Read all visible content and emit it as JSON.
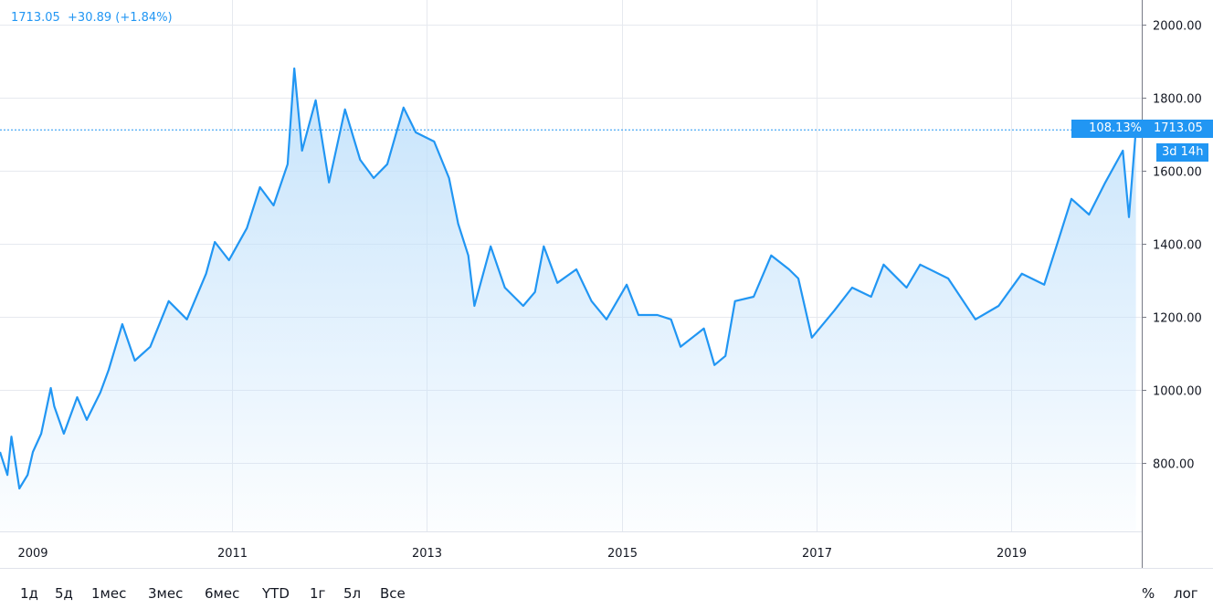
{
  "legend": {
    "price": "1713.05",
    "change": "+30.89",
    "change_pct": "(+1.84%)"
  },
  "price_tag": {
    "percent": "108.13%",
    "price": "1713.05",
    "countdown": "3d 14h"
  },
  "toolbar": {
    "ranges": [
      "1д",
      "5д",
      "1мес",
      "3мес",
      "6мес",
      "YTD",
      "1г",
      "5л",
      "Все"
    ],
    "percent": "%",
    "log": "лог"
  },
  "colors": {
    "line": "#2196f3",
    "fill_top": "#bfe0fb",
    "grid": "#e6e9ef",
    "text": "#131722"
  },
  "chart_data": {
    "type": "area",
    "x_ticks": [
      "2009",
      "2011",
      "2013",
      "2015",
      "2017",
      "2019"
    ],
    "y_ticks": [
      "800.00",
      "1000.00",
      "1200.00",
      "1400.00",
      "1600.00",
      "1800.00",
      "2000.00"
    ],
    "ylim": [
      612,
      2065
    ],
    "xlim": [
      "2008-08-15",
      "2020-04-20"
    ],
    "grid": true,
    "last_value_line": 1713.05,
    "points": [
      [
        "2008-08-15",
        830
      ],
      [
        "2008-09-10",
        767
      ],
      [
        "2008-09-25",
        872
      ],
      [
        "2008-10-25",
        730
      ],
      [
        "2008-11-25",
        767
      ],
      [
        "2008-12-15",
        830
      ],
      [
        "2009-01-15",
        880
      ],
      [
        "2009-02-20",
        1005
      ],
      [
        "2009-03-05",
        955
      ],
      [
        "2009-04-10",
        880
      ],
      [
        "2009-05-30",
        980
      ],
      [
        "2009-07-05",
        918
      ],
      [
        "2009-08-25",
        993
      ],
      [
        "2009-09-25",
        1055
      ],
      [
        "2009-11-15",
        1180
      ],
      [
        "2010-01-01",
        1080
      ],
      [
        "2010-02-28",
        1118
      ],
      [
        "2010-05-08",
        1243
      ],
      [
        "2010-07-15",
        1193
      ],
      [
        "2010-09-25",
        1318
      ],
      [
        "2010-10-28",
        1405
      ],
      [
        "2010-12-20",
        1355
      ],
      [
        "2011-02-25",
        1443
      ],
      [
        "2011-04-15",
        1555
      ],
      [
        "2011-06-05",
        1505
      ],
      [
        "2011-07-28",
        1618
      ],
      [
        "2011-08-22",
        1880
      ],
      [
        "2011-09-20",
        1655
      ],
      [
        "2011-11-10",
        1793
      ],
      [
        "2011-12-30",
        1568
      ],
      [
        "2012-02-28",
        1768
      ],
      [
        "2012-04-25",
        1630
      ],
      [
        "2012-06-15",
        1580
      ],
      [
        "2012-08-05",
        1618
      ],
      [
        "2012-10-05",
        1773
      ],
      [
        "2012-11-20",
        1705
      ],
      [
        "2013-01-28",
        1680
      ],
      [
        "2013-03-25",
        1580
      ],
      [
        "2013-04-28",
        1455
      ],
      [
        "2013-06-05",
        1368
      ],
      [
        "2013-06-28",
        1230
      ],
      [
        "2013-08-28",
        1393
      ],
      [
        "2013-10-20",
        1280
      ],
      [
        "2013-12-28",
        1230
      ],
      [
        "2014-02-10",
        1268
      ],
      [
        "2014-03-15",
        1393
      ],
      [
        "2014-05-05",
        1293
      ],
      [
        "2014-07-15",
        1330
      ],
      [
        "2014-09-10",
        1243
      ],
      [
        "2014-11-05",
        1193
      ],
      [
        "2015-01-20",
        1288
      ],
      [
        "2015-03-05",
        1205
      ],
      [
        "2015-05-15",
        1205
      ],
      [
        "2015-07-05",
        1193
      ],
      [
        "2015-08-10",
        1118
      ],
      [
        "2015-11-05",
        1168
      ],
      [
        "2015-12-15",
        1068
      ],
      [
        "2016-01-25",
        1093
      ],
      [
        "2016-03-01",
        1243
      ],
      [
        "2016-05-10",
        1255
      ],
      [
        "2016-07-15",
        1368
      ],
      [
        "2016-09-20",
        1330
      ],
      [
        "2016-10-25",
        1305
      ],
      [
        "2016-12-15",
        1143
      ],
      [
        "2017-03-10",
        1218
      ],
      [
        "2017-05-15",
        1280
      ],
      [
        "2017-07-25",
        1255
      ],
      [
        "2017-09-10",
        1343
      ],
      [
        "2017-12-05",
        1280
      ],
      [
        "2018-01-25",
        1343
      ],
      [
        "2018-05-10",
        1305
      ],
      [
        "2018-08-20",
        1193
      ],
      [
        "2018-11-15",
        1230
      ],
      [
        "2019-02-10",
        1318
      ],
      [
        "2019-05-05",
        1288
      ],
      [
        "2019-06-25",
        1405
      ],
      [
        "2019-08-15",
        1523
      ],
      [
        "2019-10-20",
        1480
      ],
      [
        "2019-12-20",
        1568
      ],
      [
        "2020-02-24",
        1655
      ],
      [
        "2020-03-18",
        1473
      ],
      [
        "2020-04-13",
        1713.05
      ]
    ]
  }
}
